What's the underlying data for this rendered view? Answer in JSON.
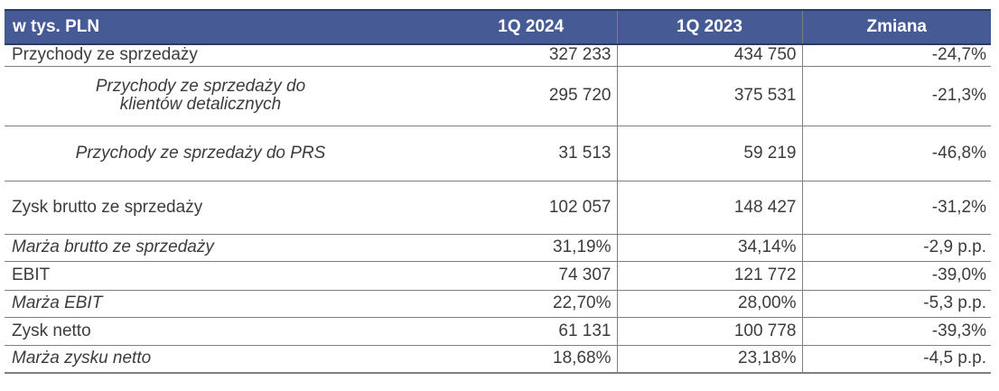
{
  "theme": {
    "header_bg": "#465A96",
    "header_border": "#2C3A64",
    "header_text": "#FFFFFF",
    "grid": "#7F7F7F",
    "text": "#3C3C3C",
    "page_bg": "#FFFFFF"
  },
  "table": {
    "columns": [
      "w tys. PLN",
      "1Q 2024",
      "1Q 2023",
      "Zmiana"
    ],
    "rows": [
      {
        "type": "item",
        "label": "Przychody ze sprzedaży",
        "q1_2024": "327 233",
        "q1_2023": "434 750",
        "change": "-24,7%"
      },
      {
        "type": "subitem",
        "label": "Przychody ze sprzedaży do klientów detalicznych",
        "q1_2024": "295 720",
        "q1_2023": "375 531",
        "change": "-21,3%"
      },
      {
        "type": "subitem",
        "label": "Przychody ze sprzedaży do PRS",
        "q1_2024": "31 513",
        "q1_2023": "59 219",
        "change": "-46,8%"
      },
      {
        "type": "item",
        "label": "Zysk brutto ze sprzedaży",
        "q1_2024": "102 057",
        "q1_2023": "148 427",
        "change": "-31,2%"
      },
      {
        "type": "ratio",
        "label": "Marża brutto ze sprzedaży",
        "q1_2024": "31,19%",
        "q1_2023": "34,14%",
        "change": "-2,9 p.p."
      },
      {
        "type": "item",
        "label": "EBIT",
        "q1_2024": "74 307",
        "q1_2023": "121 772",
        "change": "-39,0%"
      },
      {
        "type": "ratio",
        "label": "Marża EBIT",
        "q1_2024": "22,70%",
        "q1_2023": "28,00%",
        "change": "-5,3 p.p."
      },
      {
        "type": "item",
        "label": "Zysk netto",
        "q1_2024": "61 131",
        "q1_2023": "100 778",
        "change": "-39,3%"
      },
      {
        "type": "ratio",
        "label": "Marża zysku netto",
        "q1_2024": "18,68%",
        "q1_2023": "23,18%",
        "change": "-4,5 p.p."
      }
    ]
  }
}
